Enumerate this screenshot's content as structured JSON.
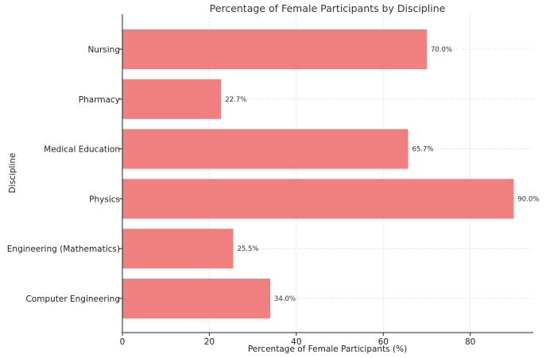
{
  "chart_data": {
    "type": "bar",
    "orientation": "horizontal",
    "title": "Percentage of Female Participants by Discipline",
    "xlabel": "Percentage of Female Participants (%)",
    "ylabel": "Discipline",
    "categories": [
      "Computer Engineering",
      "Engineering (Mathematics)",
      "Physics",
      "Medical Education",
      "Pharmacy",
      "Nursing"
    ],
    "values": [
      34.0,
      25.5,
      90.0,
      65.7,
      22.7,
      70.0
    ],
    "data_labels": [
      "34.0%",
      "25.5%",
      "90.0%",
      "65.7%",
      "22.7%",
      "70.0%"
    ],
    "xlim": [
      0,
      94.5
    ],
    "xticks": [
      0,
      20,
      40,
      60,
      80
    ],
    "grid": true,
    "bar_color": "#f08080"
  }
}
